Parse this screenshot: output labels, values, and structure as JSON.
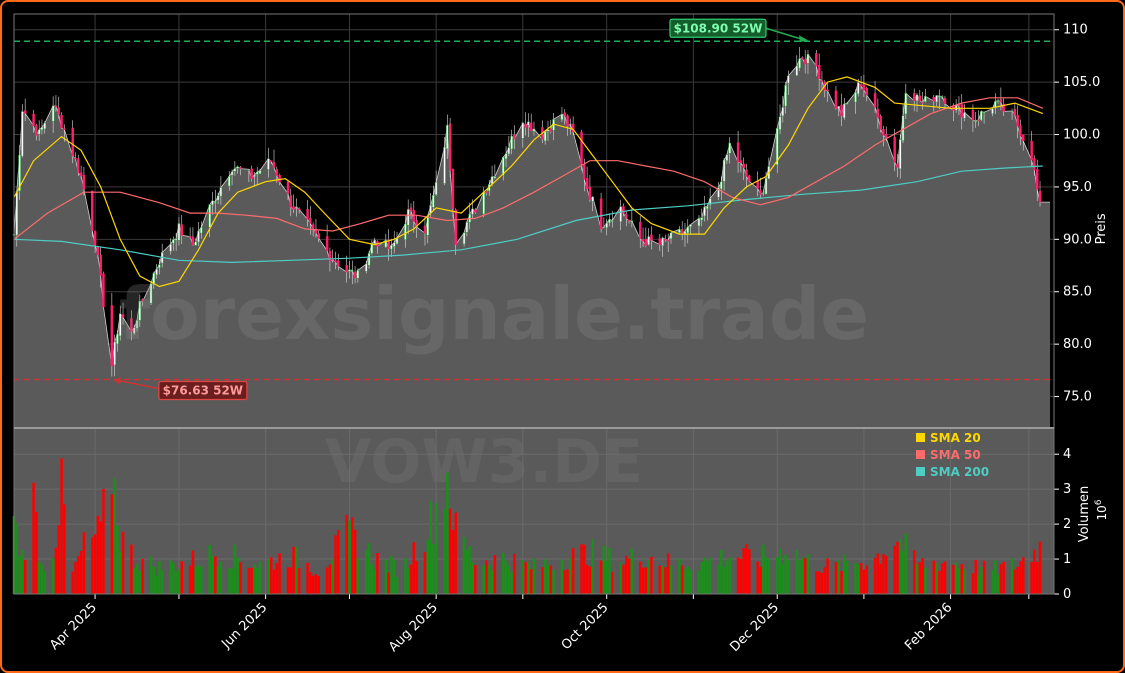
{
  "chart_data": {
    "type": "candlestick",
    "watermark": "forexsignale.trade",
    "symbol_watermark": "VOW3.DE",
    "price_axis_label": "Preis",
    "volume_axis_label": "Volumen",
    "volume_multiplier": "10",
    "volume_multiplier_exp": "6",
    "ylim": [
      72,
      111.5
    ],
    "volume_ylim": [
      0,
      4.75
    ],
    "y_ticks": [
      75,
      80,
      85,
      90,
      95,
      100,
      105,
      110
    ],
    "y_tick_labels": [
      "75.0",
      "80.0",
      "85.0",
      "90.0",
      "95.0",
      "100.0",
      "105.0",
      "110"
    ],
    "volume_ticks": [
      0,
      1,
      2,
      3,
      4
    ],
    "volume_tick_labels": [
      "0",
      "1",
      "2",
      "3",
      "4"
    ],
    "x_ticks": [
      "2025-04-01",
      "2025-05-01",
      "2025-06-01",
      "2025-07-01",
      "2025-08-01",
      "2025-09-01",
      "2025-10-01",
      "2025-11-01",
      "2025-12-01",
      "2026-01-01",
      "2026-02-01",
      "2026-03-01"
    ],
    "x_tick_labels": [
      "Apr 2025",
      "",
      "Jun 2025",
      "",
      "Aug 2025",
      "",
      "Oct 2025",
      "",
      "Dec 2025",
      "",
      "Feb 2026",
      ""
    ],
    "x_range": [
      "2025-03-03",
      "2026-03-10"
    ],
    "high_52w": {
      "value": 108.9,
      "label": "$108.90 52W",
      "date": "2025-12-12"
    },
    "low_52w": {
      "value": 76.63,
      "label": "$76.63 52W",
      "date": "2025-04-07"
    },
    "legend": [
      {
        "name": "SMA 20",
        "color": "#ffd700"
      },
      {
        "name": "SMA 50",
        "color": "#ff6b6b"
      },
      {
        "name": "SMA 200",
        "color": "#4ecdc4"
      }
    ],
    "colors": {
      "up": "#1a8f1a",
      "down": "#ff0000",
      "candle_up": "#ffffff",
      "candle_down": "#ff1f6e",
      "area": "#5a5a5a",
      "high_line": "#22aa55",
      "low_line": "#cc3333"
    },
    "price_keyframes": [
      [
        "2025-03-03",
        90.5
      ],
      [
        "2025-03-06",
        102.5
      ],
      [
        "2025-03-12",
        100.0
      ],
      [
        "2025-03-17",
        103.0
      ],
      [
        "2025-03-21",
        100.5
      ],
      [
        "2025-03-27",
        96.0
      ],
      [
        "2025-04-01",
        90.0
      ],
      [
        "2025-04-04",
        84.0
      ],
      [
        "2025-04-07",
        78.0
      ],
      [
        "2025-04-10",
        83.0
      ],
      [
        "2025-04-14",
        81.0
      ],
      [
        "2025-04-17",
        83.5
      ],
      [
        "2025-04-24",
        88.0
      ],
      [
        "2025-05-01",
        91.0
      ],
      [
        "2025-05-06",
        89.5
      ],
      [
        "2025-05-12",
        93.0
      ],
      [
        "2025-05-20",
        97.0
      ],
      [
        "2025-05-27",
        96.0
      ],
      [
        "2025-06-03",
        97.5
      ],
      [
        "2025-06-10",
        93.5
      ],
      [
        "2025-06-17",
        91.0
      ],
      [
        "2025-06-24",
        88.5
      ],
      [
        "2025-06-30",
        87.0
      ],
      [
        "2025-07-04",
        86.5
      ],
      [
        "2025-07-10",
        90.0
      ],
      [
        "2025-07-16",
        89.0
      ],
      [
        "2025-07-22",
        92.5
      ],
      [
        "2025-07-28",
        91.0
      ],
      [
        "2025-08-01",
        95.0
      ],
      [
        "2025-08-05",
        100.5
      ],
      [
        "2025-08-08",
        90.0
      ],
      [
        "2025-08-13",
        92.0
      ],
      [
        "2025-08-19",
        95.0
      ],
      [
        "2025-08-25",
        98.0
      ],
      [
        "2025-09-01",
        101.5
      ],
      [
        "2025-09-08",
        100.0
      ],
      [
        "2025-09-15",
        102.0
      ],
      [
        "2025-09-19",
        100.0
      ],
      [
        "2025-09-24",
        95.0
      ],
      [
        "2025-09-29",
        91.5
      ],
      [
        "2025-10-06",
        93.0
      ],
      [
        "2025-10-13",
        90.0
      ],
      [
        "2025-10-20",
        89.5
      ],
      [
        "2025-10-27",
        90.5
      ],
      [
        "2025-11-03",
        91.5
      ],
      [
        "2025-11-10",
        95.0
      ],
      [
        "2025-11-14",
        99.0
      ],
      [
        "2025-11-20",
        96.0
      ],
      [
        "2025-11-25",
        94.0
      ],
      [
        "2025-12-01",
        100.0
      ],
      [
        "2025-12-05",
        106.0
      ],
      [
        "2025-12-10",
        107.5
      ],
      [
        "2025-12-15",
        106.5
      ],
      [
        "2025-12-19",
        104.0
      ],
      [
        "2025-12-24",
        102.0
      ],
      [
        "2025-12-31",
        105.0
      ],
      [
        "2026-01-07",
        101.0
      ],
      [
        "2026-01-13",
        97.0
      ],
      [
        "2026-01-16",
        104.5
      ],
      [
        "2026-01-22",
        103.0
      ],
      [
        "2026-01-28",
        104.0
      ],
      [
        "2026-02-03",
        102.5
      ],
      [
        "2026-02-10",
        101.5
      ],
      [
        "2026-02-17",
        103.0
      ],
      [
        "2026-02-24",
        101.5
      ],
      [
        "2026-03-02",
        98.0
      ],
      [
        "2026-03-05",
        93.0
      ]
    ],
    "sma20": [
      [
        "2025-03-03",
        94.0
      ],
      [
        "2025-03-10",
        97.5
      ],
      [
        "2025-03-20",
        99.8
      ],
      [
        "2025-03-27",
        98.5
      ],
      [
        "2025-04-03",
        95.0
      ],
      [
        "2025-04-10",
        90.0
      ],
      [
        "2025-04-17",
        86.5
      ],
      [
        "2025-04-24",
        85.5
      ],
      [
        "2025-05-01",
        86.0
      ],
      [
        "2025-05-08",
        89.0
      ],
      [
        "2025-05-15",
        92.5
      ],
      [
        "2025-05-22",
        94.5
      ],
      [
        "2025-06-01",
        95.5
      ],
      [
        "2025-06-08",
        95.8
      ],
      [
        "2025-06-15",
        94.5
      ],
      [
        "2025-06-22",
        92.5
      ],
      [
        "2025-07-01",
        90.0
      ],
      [
        "2025-07-10",
        89.5
      ],
      [
        "2025-07-17",
        90.0
      ],
      [
        "2025-07-24",
        91.0
      ],
      [
        "2025-08-01",
        93.0
      ],
      [
        "2025-08-10",
        92.5
      ],
      [
        "2025-08-20",
        95.0
      ],
      [
        "2025-08-28",
        97.0
      ],
      [
        "2025-09-05",
        99.5
      ],
      [
        "2025-09-12",
        101.0
      ],
      [
        "2025-09-19",
        100.5
      ],
      [
        "2025-09-26",
        98.0
      ],
      [
        "2025-10-03",
        95.5
      ],
      [
        "2025-10-10",
        93.0
      ],
      [
        "2025-10-17",
        91.5
      ],
      [
        "2025-10-27",
        90.5
      ],
      [
        "2025-11-05",
        90.5
      ],
      [
        "2025-11-12",
        93.0
      ],
      [
        "2025-11-20",
        95.0
      ],
      [
        "2025-11-27",
        96.0
      ],
      [
        "2025-12-05",
        99.0
      ],
      [
        "2025-12-12",
        102.5
      ],
      [
        "2025-12-19",
        105.0
      ],
      [
        "2025-12-26",
        105.5
      ],
      [
        "2026-01-05",
        104.5
      ],
      [
        "2026-01-12",
        103.0
      ],
      [
        "2026-01-20",
        102.8
      ],
      [
        "2026-02-01",
        102.5
      ],
      [
        "2026-02-15",
        102.5
      ],
      [
        "2026-02-24",
        103.0
      ],
      [
        "2026-03-06",
        102.0
      ]
    ],
    "sma50": [
      [
        "2025-03-03",
        90.0
      ],
      [
        "2025-03-15",
        92.5
      ],
      [
        "2025-03-28",
        94.5
      ],
      [
        "2025-04-10",
        94.5
      ],
      [
        "2025-04-24",
        93.5
      ],
      [
        "2025-05-05",
        92.5
      ],
      [
        "2025-05-15",
        92.5
      ],
      [
        "2025-05-25",
        92.3
      ],
      [
        "2025-06-05",
        92.0
      ],
      [
        "2025-06-15",
        91.0
      ],
      [
        "2025-06-25",
        90.8
      ],
      [
        "2025-07-05",
        91.5
      ],
      [
        "2025-07-15",
        92.3
      ],
      [
        "2025-07-25",
        92.3
      ],
      [
        "2025-08-05",
        91.8
      ],
      [
        "2025-08-15",
        92.0
      ],
      [
        "2025-08-25",
        93.0
      ],
      [
        "2025-09-05",
        94.5
      ],
      [
        "2025-09-15",
        96.0
      ],
      [
        "2025-09-25",
        97.5
      ],
      [
        "2025-10-05",
        97.5
      ],
      [
        "2025-10-15",
        97.0
      ],
      [
        "2025-10-25",
        96.5
      ],
      [
        "2025-11-05",
        95.5
      ],
      [
        "2025-11-15",
        94.0
      ],
      [
        "2025-11-25",
        93.3
      ],
      [
        "2025-12-05",
        94.0
      ],
      [
        "2025-12-15",
        95.5
      ],
      [
        "2025-12-25",
        97.0
      ],
      [
        "2026-01-05",
        99.0
      ],
      [
        "2026-01-15",
        100.5
      ],
      [
        "2026-01-25",
        102.0
      ],
      [
        "2026-02-05",
        103.0
      ],
      [
        "2026-02-15",
        103.5
      ],
      [
        "2026-02-25",
        103.5
      ],
      [
        "2026-03-06",
        102.5
      ]
    ],
    "sma200": [
      [
        "2025-03-03",
        90.0
      ],
      [
        "2025-03-20",
        89.8
      ],
      [
        "2025-04-10",
        89.0
      ],
      [
        "2025-05-01",
        88.0
      ],
      [
        "2025-05-20",
        87.8
      ],
      [
        "2025-06-10",
        88.0
      ],
      [
        "2025-07-01",
        88.2
      ],
      [
        "2025-07-20",
        88.5
      ],
      [
        "2025-08-10",
        89.0
      ],
      [
        "2025-08-30",
        90.0
      ],
      [
        "2025-09-20",
        91.8
      ],
      [
        "2025-10-10",
        92.8
      ],
      [
        "2025-10-30",
        93.2
      ],
      [
        "2025-11-20",
        93.8
      ],
      [
        "2025-12-10",
        94.3
      ],
      [
        "2025-12-31",
        94.7
      ],
      [
        "2026-01-20",
        95.5
      ],
      [
        "2026-02-05",
        96.5
      ],
      [
        "2026-02-20",
        96.8
      ],
      [
        "2026-03-06",
        97.0
      ]
    ],
    "volume_keyframes": [
      [
        "2025-03-03",
        2.4
      ],
      [
        "2025-03-06",
        1.3
      ],
      [
        "2025-03-10",
        3.1
      ],
      [
        "2025-03-13",
        0.9
      ],
      [
        "2025-03-17",
        1.5
      ],
      [
        "2025-03-20",
        3.4
      ],
      [
        "2025-03-24",
        0.7
      ],
      [
        "2025-03-28",
        1.6
      ],
      [
        "2025-04-03",
        2.1
      ],
      [
        "2025-04-07",
        4.3
      ],
      [
        "2025-04-10",
        2.0
      ],
      [
        "2025-04-15",
        1.2
      ],
      [
        "2025-04-24",
        0.9
      ],
      [
        "2025-05-05",
        1.1
      ],
      [
        "2025-05-15",
        1.4
      ],
      [
        "2025-05-30",
        1.0
      ],
      [
        "2025-06-10",
        1.3
      ],
      [
        "2025-06-20",
        0.8
      ],
      [
        "2025-07-01",
        2.1
      ],
      [
        "2025-07-10",
        1.2
      ],
      [
        "2025-07-20",
        0.8
      ],
      [
        "2025-07-31",
        2.6
      ],
      [
        "2025-08-05",
        4.1
      ],
      [
        "2025-08-08",
        2.1
      ],
      [
        "2025-08-15",
        1.1
      ],
      [
        "2025-08-25",
        1.2
      ],
      [
        "2025-09-05",
        0.9
      ],
      [
        "2025-09-15",
        1.2
      ],
      [
        "2025-09-25",
        1.4
      ],
      [
        "2025-10-05",
        1.1
      ],
      [
        "2025-10-15",
        1.3
      ],
      [
        "2025-10-25",
        1.0
      ],
      [
        "2025-11-05",
        1.1
      ],
      [
        "2025-11-15",
        1.3
      ],
      [
        "2025-11-25",
        1.2
      ],
      [
        "2025-12-05",
        1.5
      ],
      [
        "2025-12-12",
        1.1
      ],
      [
        "2025-12-20",
        0.9
      ],
      [
        "2026-01-05",
        1.2
      ],
      [
        "2026-01-13",
        1.9
      ],
      [
        "2026-01-20",
        1.0
      ],
      [
        "2026-02-01",
        1.1
      ],
      [
        "2026-02-15",
        0.8
      ],
      [
        "2026-02-25",
        1.0
      ],
      [
        "2026-03-05",
        1.6
      ],
      [
        "2026-03-06",
        0.5
      ]
    ]
  }
}
